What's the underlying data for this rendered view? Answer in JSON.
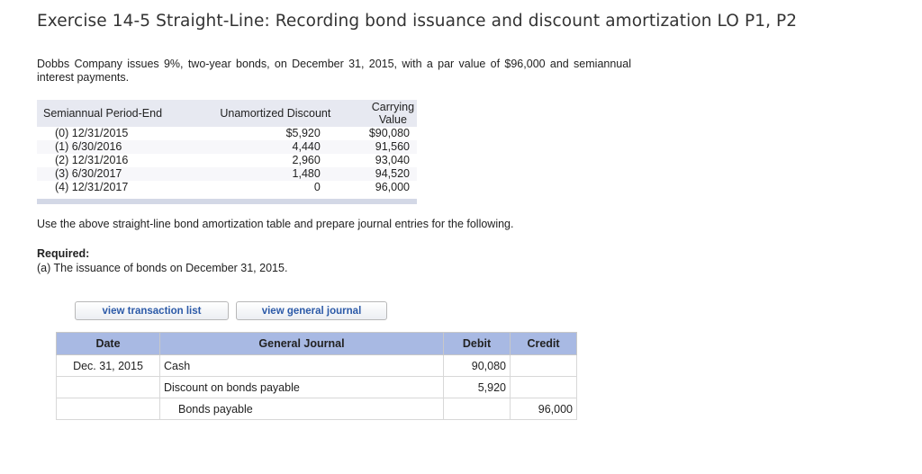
{
  "title": "Exercise 14-5 Straight-Line: Recording bond issuance and discount amortization LO P1, P2",
  "intro": "Dobbs Company issues 9%, two-year bonds, on December 31, 2015, with a par value of $96,000 and semiannual interest payments.",
  "amortization_table": {
    "headers": [
      "Semiannual Period-End",
      "Unamortized Discount",
      "Carrying Value"
    ],
    "rows": [
      [
        "(0)  12/31/2015",
        "$5,920",
        "$90,080"
      ],
      [
        "(1)    6/30/2016",
        "4,440",
        "91,560"
      ],
      [
        "(2)  12/31/2016",
        "2,960",
        "93,040"
      ],
      [
        "(3)    6/30/2017",
        "1,480",
        "94,520"
      ],
      [
        "(4)  12/31/2017",
        "0",
        "96,000"
      ]
    ]
  },
  "instruction": "Use the above straight-line bond amortization table and prepare journal entries for the following.",
  "required_label": "Required:",
  "required_a": "(a) The issuance of bonds on December 31, 2015.",
  "buttons": {
    "transaction_list": "view transaction list",
    "general_journal": "view general journal"
  },
  "journal": {
    "headers": [
      "Date",
      "General Journal",
      "Debit",
      "Credit"
    ],
    "rows": [
      {
        "date": "Dec. 31, 2015",
        "account": "Cash",
        "debit": "90,080",
        "credit": ""
      },
      {
        "date": "",
        "account": "Discount on bonds payable",
        "debit": "5,920",
        "credit": ""
      },
      {
        "date": "",
        "account": "Bonds payable",
        "debit": "",
        "credit": "96,000"
      }
    ]
  },
  "colors": {
    "journal_header": "#a8b9e3",
    "table_header": "#e7e9f1",
    "button_text": "#2c5aa8"
  }
}
